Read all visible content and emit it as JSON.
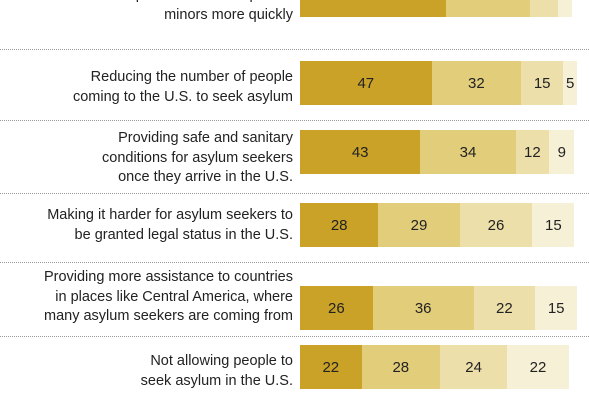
{
  "chart_data": {
    "type": "bar",
    "orientation": "horizontal",
    "stacked": true,
    "categories": [
      [
        "available to process unaccompanied",
        "minors more quickly"
      ],
      [
        "Reducing the number of people",
        "coming to the U.S. to seek asylum"
      ],
      [
        "Providing safe and sanitary",
        "conditions for asylum seekers",
        "once they arrive in the U.S."
      ],
      [
        "Making it harder for asylum seekers to",
        "be granted legal status in the U.S."
      ],
      [
        "Providing more assistance to countries",
        "in places like Central America, where",
        "many asylum seekers are coming from"
      ],
      [
        "Not allowing people to",
        "seek asylum in the U.S."
      ]
    ],
    "series": [
      {
        "values": [
          52,
          47,
          43,
          28,
          26,
          22
        ],
        "color": "#c9a227"
      },
      {
        "values": [
          30,
          32,
          34,
          29,
          36,
          28
        ],
        "color": "#e2cd7a"
      },
      {
        "values": [
          10,
          15,
          12,
          26,
          22,
          24
        ],
        "color": "#ecdfa9"
      },
      {
        "values": [
          5,
          5,
          9,
          15,
          15,
          22
        ],
        "color": "#f6f0d6"
      }
    ],
    "xlim": [
      0,
      100
    ]
  }
}
